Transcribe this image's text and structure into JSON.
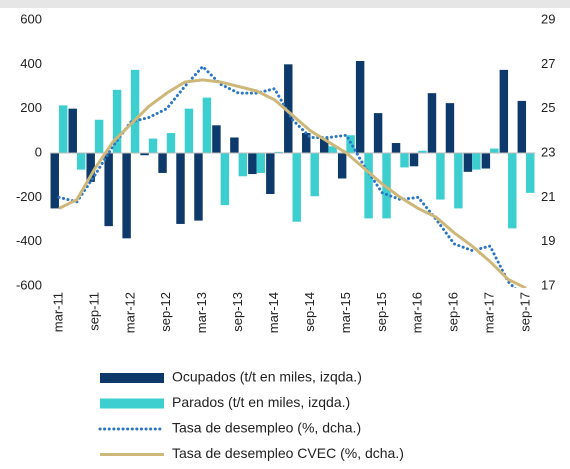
{
  "chart_data": {
    "type": "combo",
    "categories": [
      "mar-11",
      null,
      "sep-11",
      null,
      "mar-12",
      null,
      "sep-12",
      null,
      "mar-13",
      null,
      "sep-13",
      null,
      "mar-14",
      null,
      "sep-14",
      null,
      "mar-15",
      null,
      "sep-15",
      null,
      "mar-16",
      null,
      "sep-16",
      null,
      "mar-17",
      null,
      "sep-17"
    ],
    "ylim": [
      -600,
      600
    ],
    "yticks": [
      -600,
      -400,
      -200,
      0,
      200,
      400,
      600
    ],
    "y2lim": [
      17,
      29
    ],
    "y2ticks": [
      17,
      19,
      21,
      23,
      25,
      27,
      29
    ],
    "series": [
      {
        "name": "Ocupados (t/t en miles, izqda.)",
        "kind": "bar",
        "color": "#0e3a6b",
        "values": [
          -250,
          200,
          -130,
          -330,
          -385,
          -10,
          -90,
          -320,
          -305,
          125,
          70,
          -95,
          -185,
          400,
          90,
          65,
          -115,
          415,
          180,
          45,
          -60,
          270,
          225,
          -85,
          -70,
          375,
          235
        ]
      },
      {
        "name": "Parados (t/t en miles, izqda.)",
        "kind": "bar",
        "color": "#3dcfd0",
        "values": [
          215,
          -75,
          150,
          285,
          375,
          65,
          90,
          200,
          250,
          -235,
          -105,
          -90,
          5,
          -310,
          -195,
          30,
          80,
          -295,
          -295,
          -65,
          10,
          -210,
          -250,
          -75,
          20,
          -340,
          -180
        ]
      },
      {
        "name": "Tasa de desempleo (%, dcha.)",
        "kind": "dotted",
        "axis": "y2",
        "color": "#2a76c4",
        "values": [
          21.0,
          20.8,
          22.0,
          23.3,
          24.4,
          24.6,
          25.0,
          26.0,
          26.9,
          26.1,
          25.7,
          25.7,
          25.9,
          24.5,
          23.7,
          23.7,
          23.8,
          22.4,
          21.2,
          20.9,
          21.0,
          20.0,
          18.9,
          18.6,
          18.8,
          17.2,
          16.4
        ]
      },
      {
        "name": "Tasa de desempleo CVEC (%, dcha.)",
        "kind": "line",
        "axis": "y2",
        "color": "#cdb779",
        "values": [
          20.5,
          20.9,
          22.3,
          23.5,
          24.3,
          25.1,
          25.7,
          26.2,
          26.3,
          26.2,
          26.0,
          25.8,
          25.4,
          24.7,
          24.0,
          23.5,
          23.0,
          22.3,
          21.6,
          21.0,
          20.5,
          20.1,
          19.4,
          18.8,
          18.1,
          17.3,
          16.9
        ]
      }
    ]
  }
}
